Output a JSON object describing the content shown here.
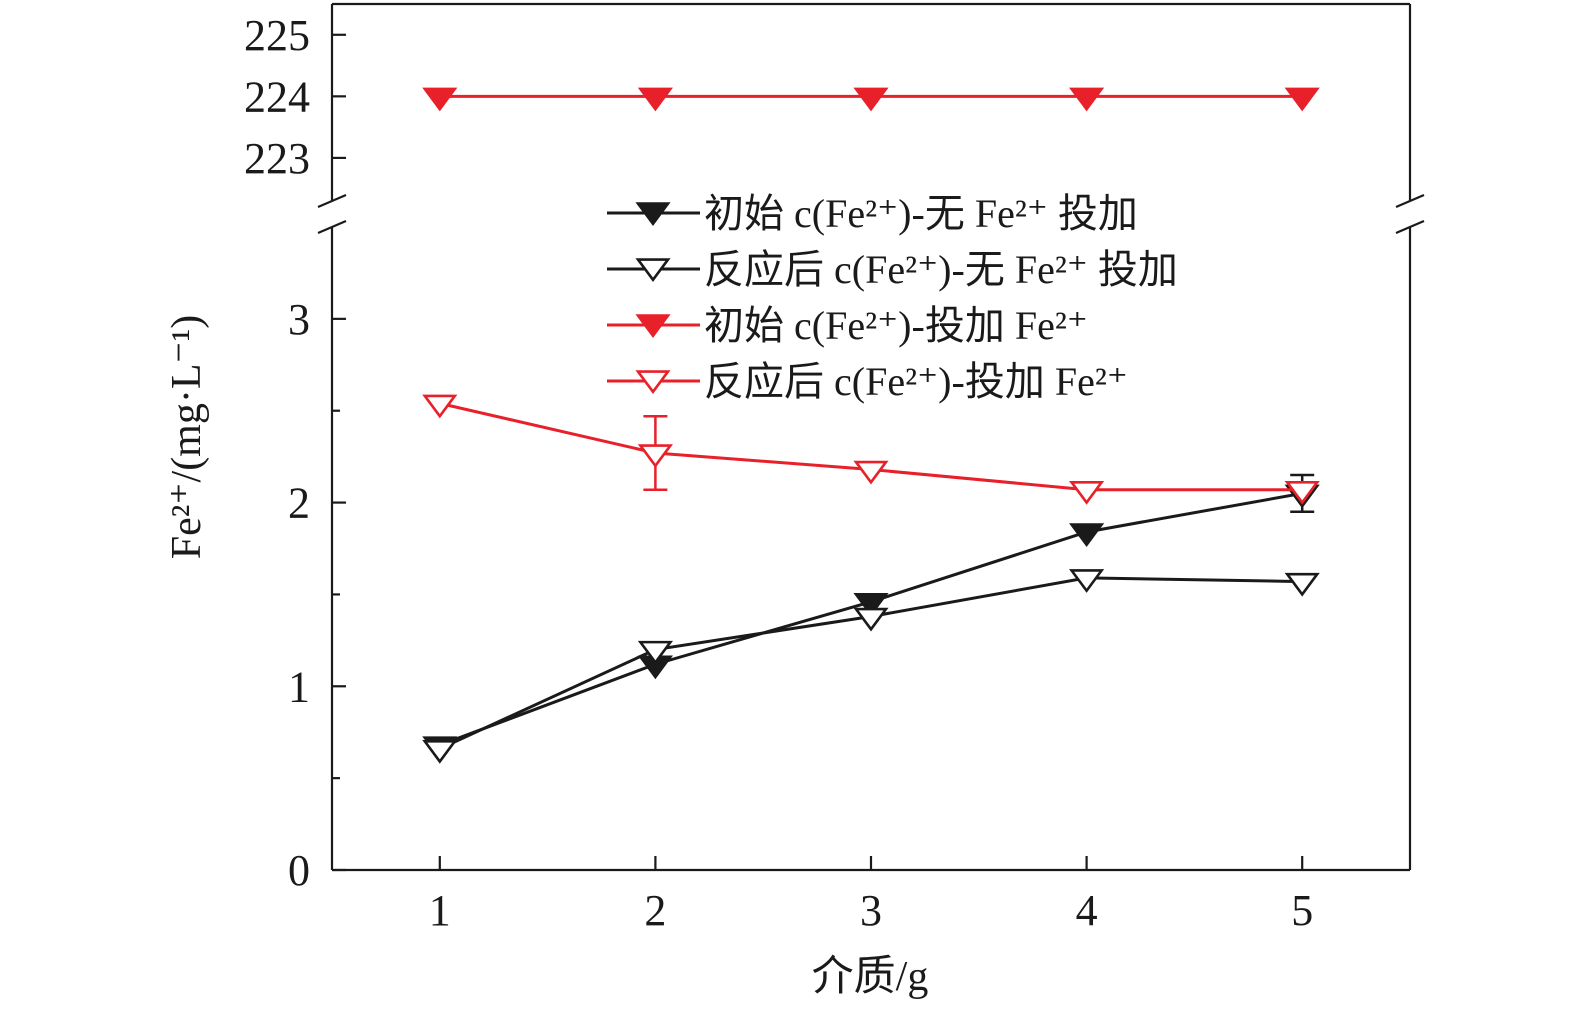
{
  "chart_data": {
    "type": "line",
    "xlabel": "介质/g",
    "ylabel": "Fe²⁺/(mg·L⁻¹)",
    "x": [
      1,
      2,
      3,
      4,
      5
    ],
    "xlim": [
      0.5,
      5.5
    ],
    "x_ticks": [
      "1",
      "2",
      "3",
      "4",
      "5"
    ],
    "y_break": true,
    "ylim_lower": [
      0,
      3.5
    ],
    "ylim_upper": [
      222.3,
      225.5
    ],
    "y_ticks_lower": [
      "0",
      "1",
      "2",
      "3"
    ],
    "y_ticks_upper": [
      "223",
      "224",
      "225"
    ],
    "series": [
      {
        "name": "初始 c(Fe²⁺)-无 Fe²⁺ 投加",
        "color": "#1a1a1a",
        "marker": "filled-down-triangle",
        "values": [
          0.68,
          1.12,
          1.46,
          1.84,
          2.05
        ],
        "errors": [
          0,
          0,
          0,
          0,
          0.1
        ]
      },
      {
        "name": "反应后 c(Fe²⁺)-无 Fe²⁺ 投加",
        "color": "#1a1a1a",
        "marker": "open-down-triangle",
        "values": [
          0.66,
          1.2,
          1.38,
          1.59,
          1.57
        ],
        "errors": [
          0,
          0,
          0,
          0,
          0
        ]
      },
      {
        "name": "初始 c(Fe²⁺)-投加 Fe²⁺",
        "color": "#e8202a",
        "marker": "filled-down-triangle",
        "values": [
          224,
          224,
          224,
          224,
          224
        ],
        "errors": [
          0,
          0,
          0,
          0,
          0
        ]
      },
      {
        "name": "反应后 c(Fe²⁺)-投加 Fe²⁺",
        "color": "#e8202a",
        "marker": "open-down-triangle",
        "values": [
          2.54,
          2.27,
          2.18,
          2.07,
          2.07
        ],
        "errors": [
          0,
          0.2,
          0,
          0,
          0
        ]
      }
    ],
    "legend_position": "top-right",
    "grid": false
  }
}
